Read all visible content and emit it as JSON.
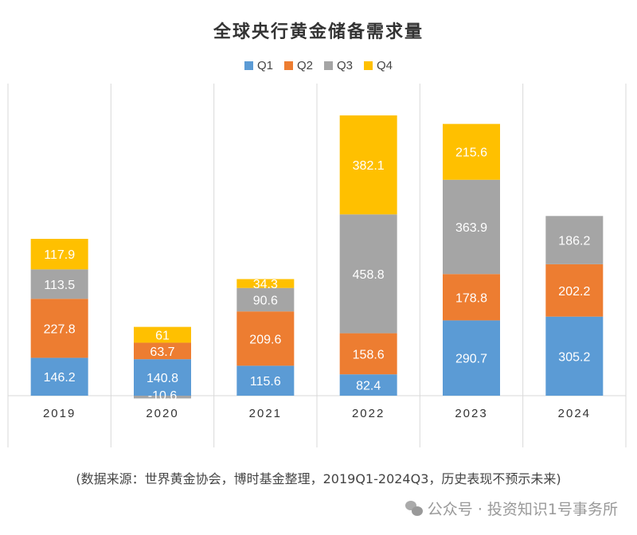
{
  "chart_data": {
    "type": "bar",
    "stacked": true,
    "title": "全球央行黄金储备需求量",
    "categories": [
      "2019",
      "2020",
      "2021",
      "2022",
      "2023",
      "2024"
    ],
    "series": [
      {
        "name": "Q1",
        "color": "#5B9BD5",
        "values": [
          146.2,
          140.8,
          115.6,
          82.4,
          290.7,
          305.2
        ]
      },
      {
        "name": "Q2",
        "color": "#ED7D31",
        "values": [
          227.8,
          63.7,
          209.6,
          158.6,
          178.8,
          202.2
        ]
      },
      {
        "name": "Q3",
        "color": "#A5A5A5",
        "values": [
          113.5,
          -10.6,
          90.6,
          458.8,
          363.9,
          186.2
        ]
      },
      {
        "name": "Q4",
        "color": "#FFC000",
        "values": [
          117.9,
          61,
          34.3,
          382.1,
          215.6,
          null
        ]
      }
    ],
    "legend_position": "top",
    "grid": "vertical category separators",
    "data_labels": true
  },
  "source_note": "(数据来源：世界黄金协会，博时基金整理，2019Q1-2024Q3，历史表现不预示未来)",
  "watermark": "公众号 · 投资知识1号事务所"
}
